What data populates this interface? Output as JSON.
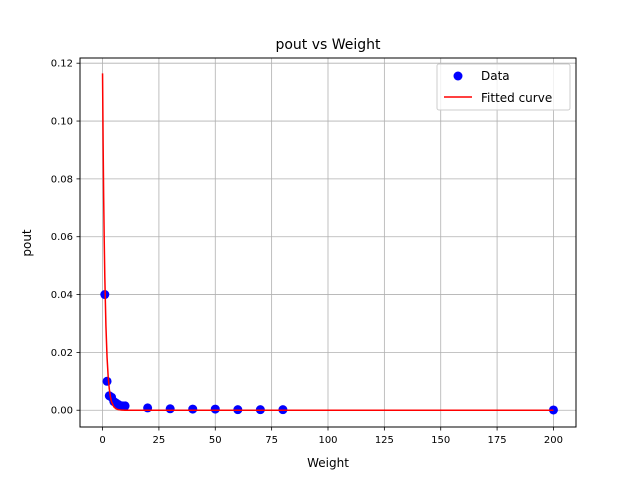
{
  "chart_data": {
    "type": "scatter",
    "title": "pout vs Weight",
    "xlabel": "Weight",
    "ylabel": "pout",
    "xlim": [
      -10,
      210
    ],
    "ylim": [
      -0.0058,
      0.1218
    ],
    "xticks": [
      0,
      25,
      50,
      75,
      100,
      125,
      150,
      175,
      200
    ],
    "xtick_labels": [
      "0",
      "25",
      "50",
      "75",
      "100",
      "125",
      "150",
      "175",
      "200"
    ],
    "yticks": [
      0.0,
      0.02,
      0.04,
      0.06,
      0.08,
      0.1,
      0.12
    ],
    "ytick_labels": [
      "0.00",
      "0.02",
      "0.04",
      "0.06",
      "0.08",
      "0.10",
      "0.12"
    ],
    "grid": true,
    "legend_position": "top-right",
    "series": [
      {
        "name": "Data",
        "kind": "scatter",
        "color": "#0000ff",
        "x": [
          1,
          2,
          3,
          4,
          5,
          6,
          7,
          8,
          9,
          10,
          20,
          30,
          40,
          50,
          60,
          70,
          80,
          200
        ],
        "y": [
          0.04,
          0.01,
          0.005,
          0.0045,
          0.003,
          0.0025,
          0.002,
          0.0015,
          0.0015,
          0.0015,
          0.0008,
          0.0005,
          0.0004,
          0.0004,
          0.0002,
          0.0002,
          0.0002,
          0.0001
        ]
      },
      {
        "name": "Fitted curve",
        "kind": "line",
        "color": "#ff0000",
        "x": [
          0,
          0.25,
          0.5,
          0.75,
          1,
          1.5,
          2,
          2.5,
          3,
          3.5,
          4,
          5,
          6,
          7,
          8,
          10,
          15,
          20,
          30,
          50,
          100,
          150,
          200
        ],
        "y": [
          0.1165,
          0.0925,
          0.0734,
          0.0583,
          0.0462,
          0.0291,
          0.0183,
          0.0116,
          0.0073,
          0.0046,
          0.0029,
          0.0012,
          0.0005,
          0.0002,
          0.0001,
          0.0,
          0.0,
          0.0,
          0.0,
          0.0,
          0.0,
          0.0,
          0.0
        ]
      }
    ]
  }
}
